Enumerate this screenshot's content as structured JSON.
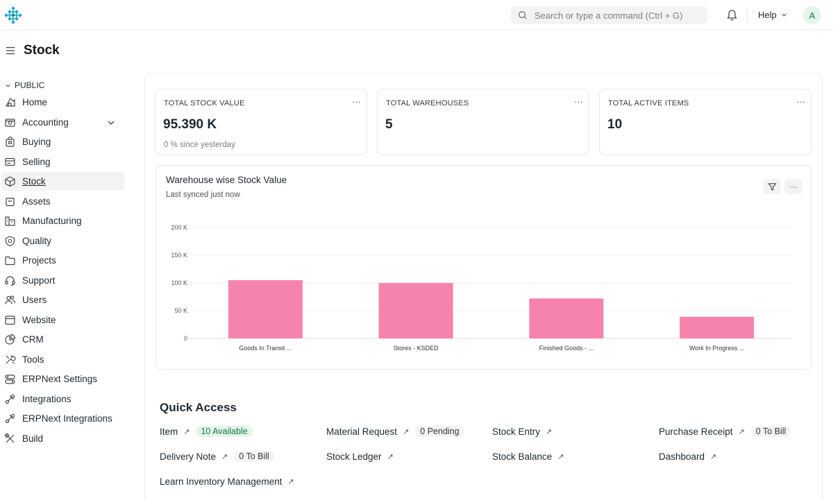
{
  "navbar": {
    "search_placeholder": "Search or type a command (Ctrl + G)",
    "help_label": "Help",
    "avatar_initial": "A"
  },
  "page": {
    "title": "Stock"
  },
  "sidebar": {
    "section": "PUBLIC",
    "items": [
      {
        "label": "Home",
        "icon": "home-icon"
      },
      {
        "label": "Accounting",
        "icon": "accounting-icon",
        "has_children": true
      },
      {
        "label": "Buying",
        "icon": "buying-icon"
      },
      {
        "label": "Selling",
        "icon": "selling-icon"
      },
      {
        "label": "Stock",
        "icon": "stock-icon",
        "active": true
      },
      {
        "label": "Assets",
        "icon": "assets-icon"
      },
      {
        "label": "Manufacturing",
        "icon": "manufacturing-icon"
      },
      {
        "label": "Quality",
        "icon": "quality-icon"
      },
      {
        "label": "Projects",
        "icon": "projects-icon"
      },
      {
        "label": "Support",
        "icon": "support-icon"
      },
      {
        "label": "Users",
        "icon": "users-icon"
      },
      {
        "label": "Website",
        "icon": "website-icon"
      },
      {
        "label": "CRM",
        "icon": "crm-icon"
      },
      {
        "label": "Tools",
        "icon": "tools-icon"
      },
      {
        "label": "ERPNext Settings",
        "icon": "settings-icon"
      },
      {
        "label": "Integrations",
        "icon": "integrations-icon"
      },
      {
        "label": "ERPNext Integrations",
        "icon": "integrations-icon"
      },
      {
        "label": "Build",
        "icon": "build-icon"
      }
    ]
  },
  "cards": [
    {
      "label": "TOTAL STOCK VALUE",
      "value": "95.390 K",
      "sub": "0 % since yesterday"
    },
    {
      "label": "TOTAL WAREHOUSES",
      "value": "5",
      "sub": ""
    },
    {
      "label": "TOTAL ACTIVE ITEMS",
      "value": "10",
      "sub": ""
    }
  ],
  "chart_card": {
    "title": "Warehouse wise Stock Value",
    "subtitle": "Last synced just now"
  },
  "chart_data": {
    "type": "bar",
    "title": "Warehouse wise Stock Value",
    "categories": [
      "Goods In Transit ...",
      "Stores - KSDED",
      "Finished Goods - ...",
      "Work In Progress ..."
    ],
    "values": [
      105000,
      100000,
      72000,
      39000
    ],
    "y_ticks": [
      "0",
      "50 K",
      "100 K",
      "150 K",
      "200 K"
    ],
    "ylim": [
      0,
      200000
    ],
    "grid": true,
    "color": "#f683ae"
  },
  "quick_access": {
    "title": "Quick Access",
    "items": [
      {
        "label": "Item",
        "pill": "10 Available",
        "pill_style": "green"
      },
      {
        "label": "Material Request",
        "pill": "0 Pending",
        "pill_style": "gray"
      },
      {
        "label": "Stock Entry",
        "pill": ""
      },
      {
        "label": "Purchase Receipt",
        "pill": "0 To Bill",
        "pill_style": "gray"
      },
      {
        "label": "Delivery Note",
        "pill": "0 To Bill",
        "pill_style": "gray"
      },
      {
        "label": "Stock Ledger",
        "pill": ""
      },
      {
        "label": "Stock Balance",
        "pill": ""
      },
      {
        "label": "Dashboard",
        "pill": ""
      },
      {
        "label": "Learn Inventory Management",
        "pill": ""
      }
    ]
  }
}
